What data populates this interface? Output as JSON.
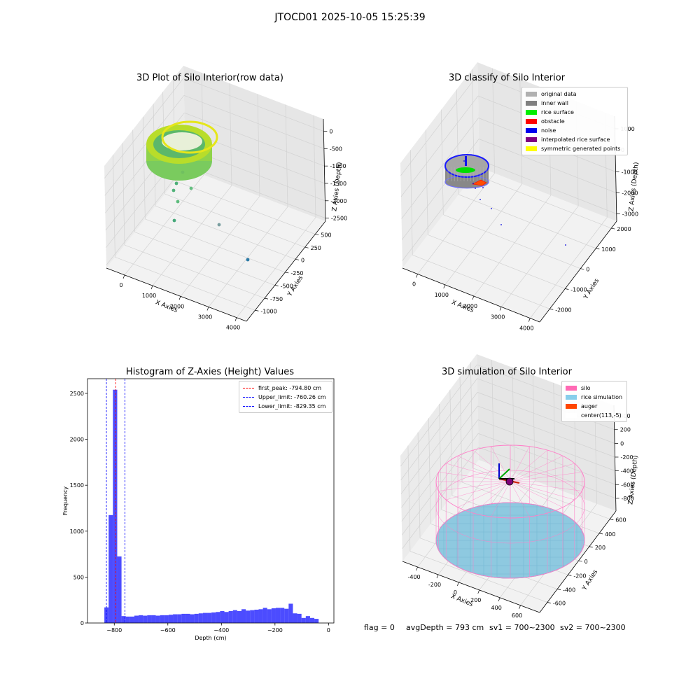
{
  "figure_title": "JTOCD01 2025-10-05 15:25:39",
  "panels": {
    "raw": {
      "title": "3D Plot of Silo Interior(row data)",
      "xlabel": "X Axies",
      "ylabel": "Y Axies",
      "zlabel": "Z Axies (Depth)",
      "xticks": [
        "0",
        "1000",
        "2000",
        "3000",
        "4000"
      ],
      "yticks": [
        "-1000",
        "-750",
        "-500",
        "-250",
        "0",
        "250",
        "500"
      ],
      "zticks": [
        "0",
        "-500",
        "-1000",
        "-1500",
        "-2000",
        "-2500"
      ]
    },
    "classify": {
      "title": "3D classify of Silo Interior",
      "xlabel": "X Axies",
      "ylabel": "Y Axies",
      "zlabel": "Z Axies (Depth)",
      "xticks": [
        "0",
        "1000",
        "2000",
        "3000",
        "4000"
      ],
      "yticks": [
        "-2000",
        "-1000",
        "0",
        "1000",
        "2000"
      ],
      "zticks": [
        "1000",
        "0",
        "-1000",
        "-2000",
        "-3000"
      ],
      "legend": [
        {
          "label": "original data",
          "color": "#b0b0b0"
        },
        {
          "label": "inner wall",
          "color": "#808080"
        },
        {
          "label": "rice surface",
          "color": "#00ee00"
        },
        {
          "label": "obstacle",
          "color": "#ff0000"
        },
        {
          "label": "noise",
          "color": "#0000ee"
        },
        {
          "label": "interpolated rice surface",
          "color": "#800080"
        },
        {
          "label": "symmetric generated points",
          "color": "#ffff00"
        }
      ]
    },
    "simulation": {
      "title": "3D simulation of Silo Interior",
      "xlabel": "X Axies",
      "ylabel": "Y Axies",
      "zlabel": "Z Axies (Depth)",
      "xticks": [
        "-400",
        "-200",
        "0",
        "200",
        "400",
        "600"
      ],
      "yticks": [
        "-600",
        "-400",
        "-200",
        "0",
        "200",
        "400",
        "600"
      ],
      "zticks": [
        "400",
        "200",
        "0",
        "-200",
        "-400",
        "-600",
        "-800"
      ],
      "legend": [
        {
          "label": "silo",
          "color": "#ff69b4"
        },
        {
          "label": "rice simulation",
          "color": "#87ceeb"
        },
        {
          "label": "auger",
          "color": "#ff4500"
        },
        {
          "label": "center(113,-5)",
          "color": "#ffffff"
        }
      ]
    }
  },
  "chart_data": {
    "type": "bar",
    "title": "Histogram of Z-Axies (Height) Values",
    "xlabel": "Depth (cm)",
    "ylabel": "Frequency",
    "xlim": [
      -900,
      20
    ],
    "ylim": [
      0,
      2660
    ],
    "xticks": [
      -800,
      -600,
      -400,
      -200,
      0
    ],
    "yticks": [
      0,
      500,
      1000,
      1500,
      2000,
      2500
    ],
    "bar_color": "#0000ff",
    "bin_width": 16.0,
    "bin_start": -837.0,
    "values": [
      170,
      1175,
      2540,
      725,
      75,
      70,
      70,
      80,
      85,
      80,
      85,
      85,
      80,
      85,
      85,
      90,
      95,
      95,
      100,
      100,
      95,
      100,
      105,
      110,
      110,
      115,
      120,
      130,
      120,
      130,
      140,
      130,
      150,
      135,
      140,
      145,
      150,
      165,
      150,
      160,
      165,
      165,
      155,
      210,
      105,
      100,
      55,
      75,
      55,
      45
    ],
    "vlines": [
      {
        "label": "first_peak: -794.80 cm",
        "x": -794.8,
        "color": "#ff0000"
      },
      {
        "label": "Upper_limit: -760.26 cm",
        "x": -760.26,
        "color": "#0000ff"
      },
      {
        "label": "Lower_limit: -829.35 cm",
        "x": -829.35,
        "color": "#0000ff"
      }
    ]
  },
  "status": {
    "flag": "flag = 0",
    "avg_depth": "avgDepth = 793 cm",
    "sv1": "sv1 = 700~2300",
    "sv2": "sv2 = 700~2300"
  }
}
